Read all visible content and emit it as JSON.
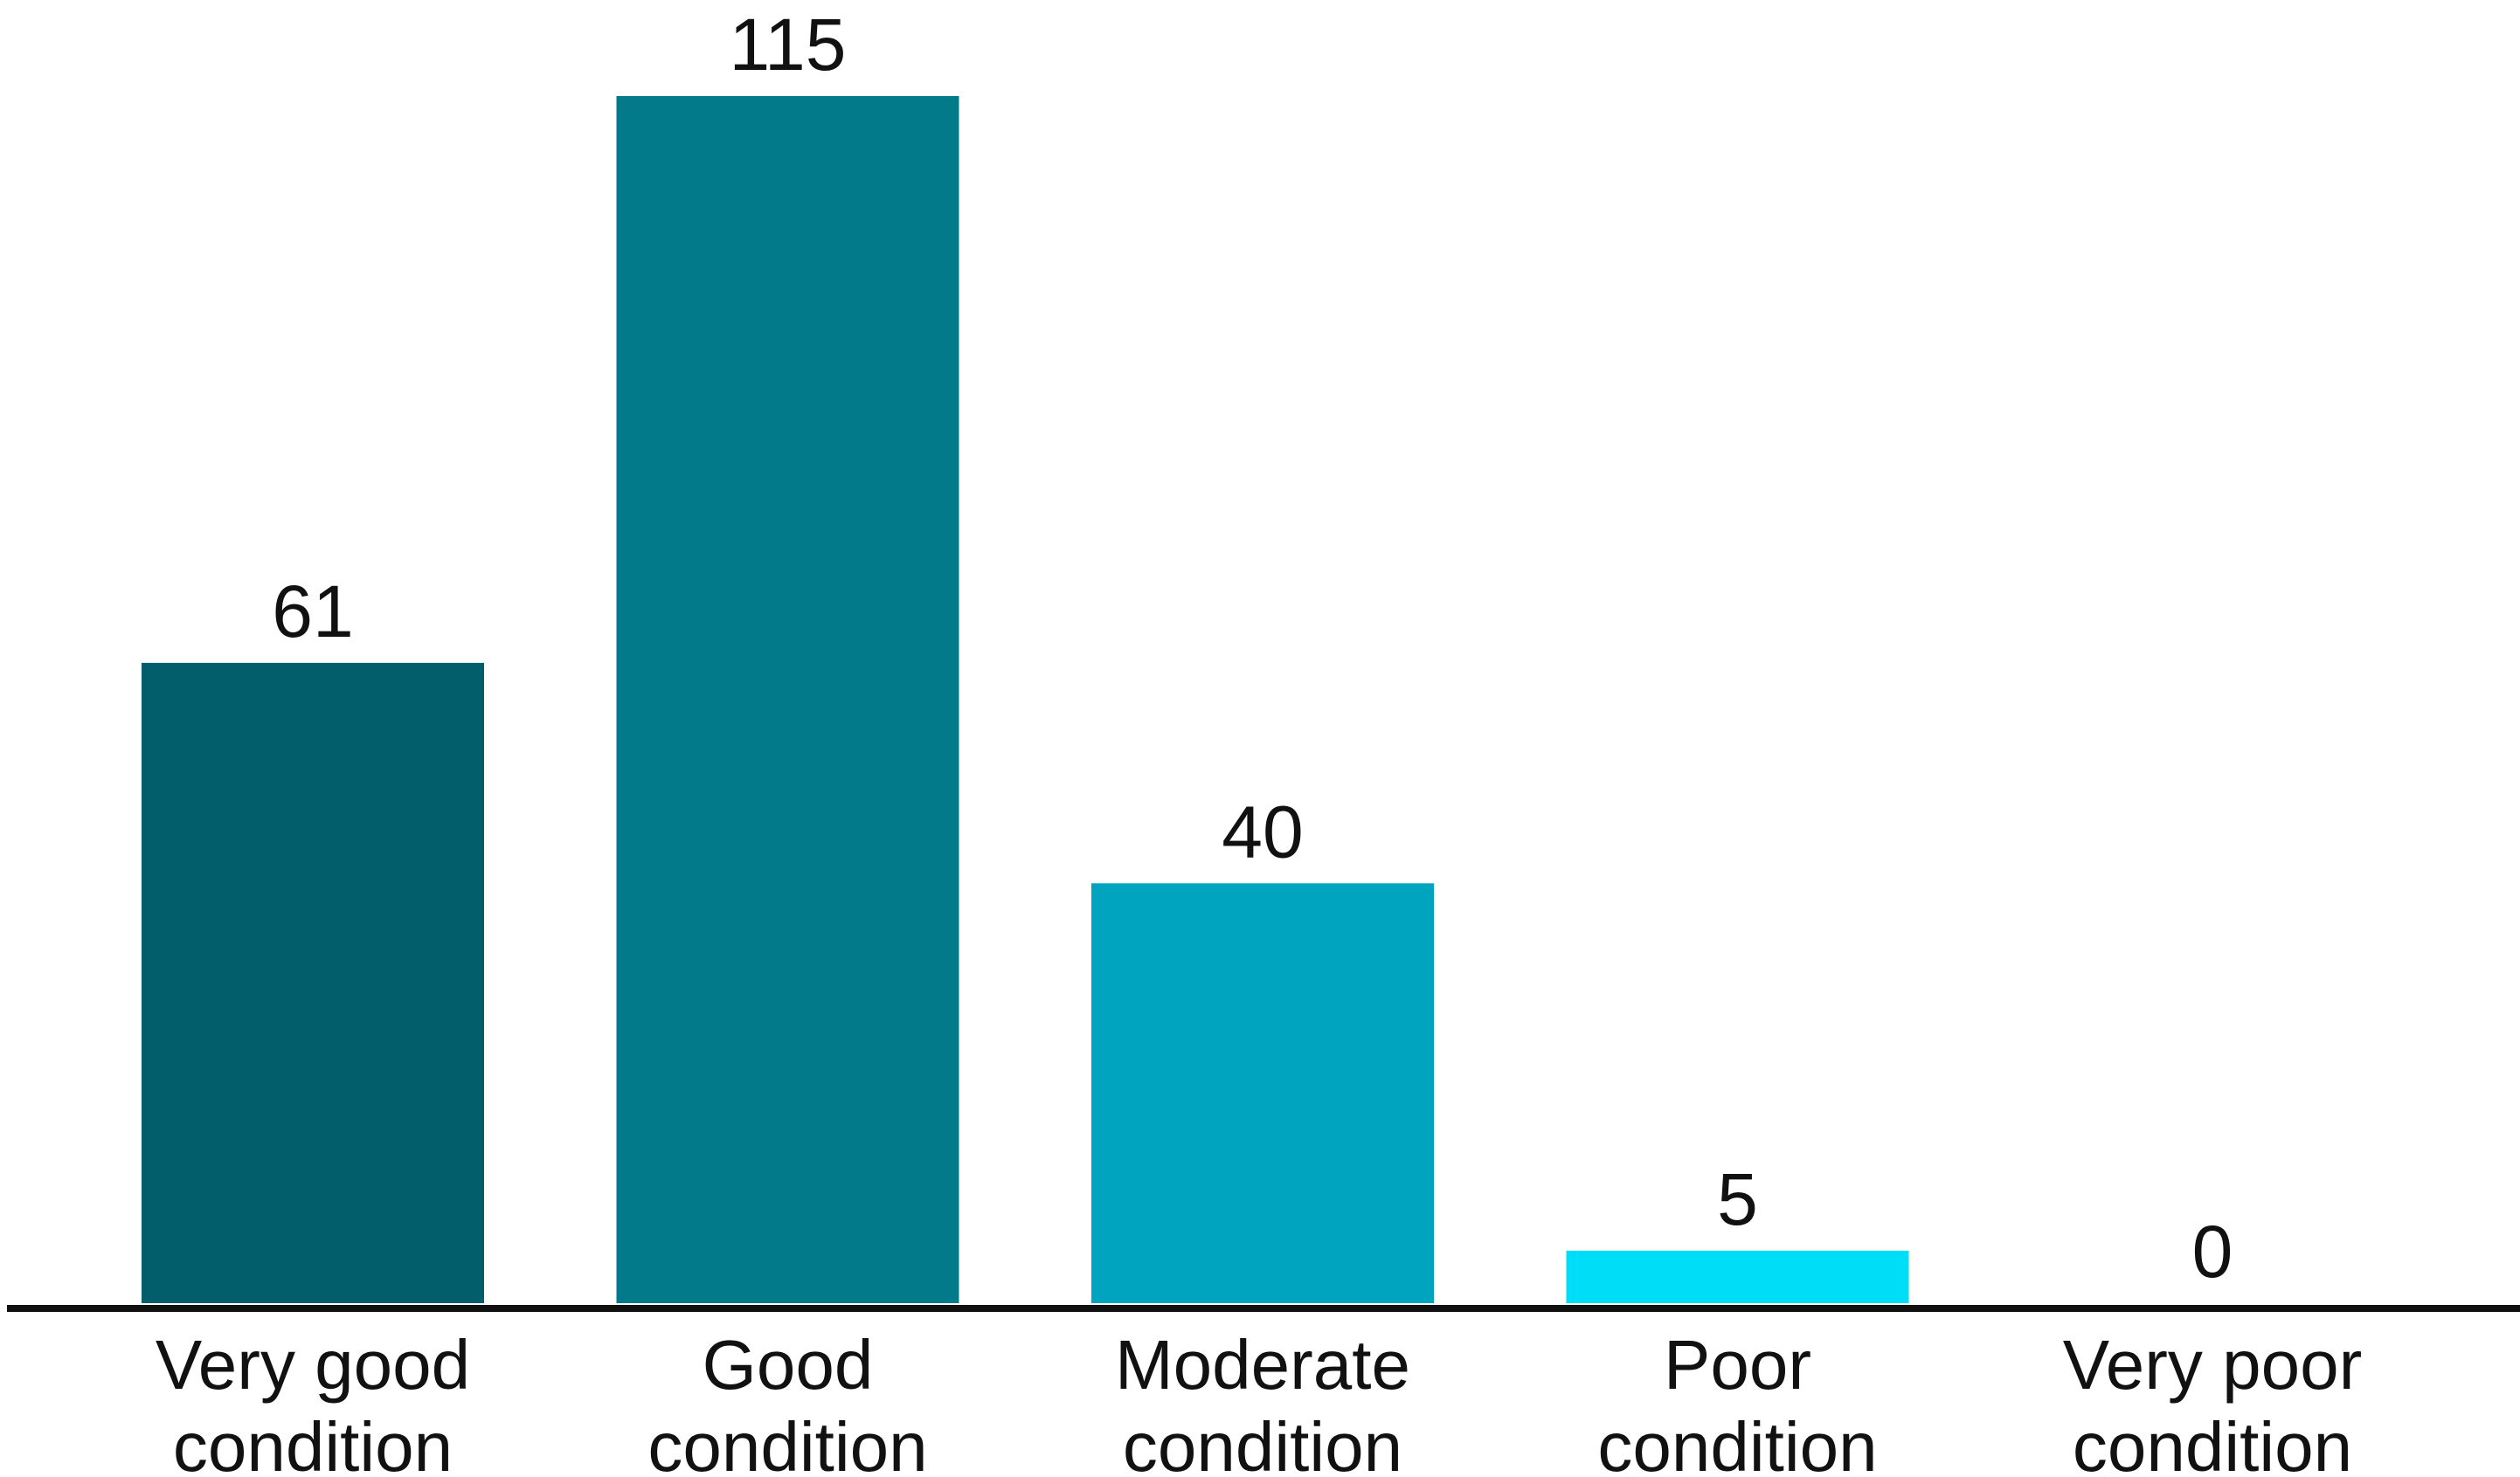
{
  "chart_data": {
    "type": "bar",
    "categories": [
      [
        "Very good",
        "condition"
      ],
      [
        "Good",
        "condition"
      ],
      [
        "Moderate",
        "condition"
      ],
      [
        "Poor",
        "condition"
      ],
      [
        "Very poor",
        "condition"
      ]
    ],
    "values": [
      61,
      115,
      40,
      5,
      0
    ],
    "value_labels": [
      "61",
      "115",
      "40",
      "5",
      "0"
    ],
    "colors": [
      "#035E6B",
      "#027A8A",
      "#00A4BE",
      "#00DDF7",
      "#00DDF7"
    ],
    "title": "",
    "xlabel": "",
    "ylabel": "",
    "ylim": [
      0,
      115
    ],
    "grid": false,
    "legend": "none"
  }
}
